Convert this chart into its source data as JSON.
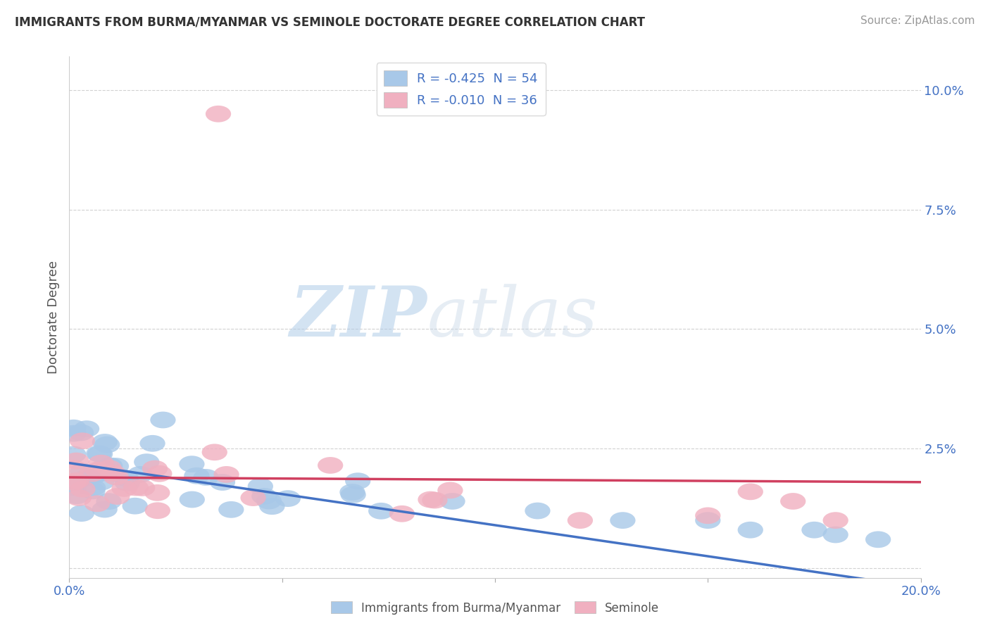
{
  "title": "IMMIGRANTS FROM BURMA/MYANMAR VS SEMINOLE DOCTORATE DEGREE CORRELATION CHART",
  "source": "Source: ZipAtlas.com",
  "ylabel": "Doctorate Degree",
  "xlim": [
    0.0,
    0.2
  ],
  "ylim": [
    -0.002,
    0.107
  ],
  "legend_r1": "R = -0.425  N = 54",
  "legend_r2": "R = -0.010  N = 36",
  "legend_label1": "Immigrants from Burma/Myanmar",
  "legend_label2": "Seminole",
  "color_blue": "#a8c8e8",
  "color_pink": "#f0b0c0",
  "color_blue_line": "#4472c4",
  "color_pink_line": "#d04060",
  "background_color": "#ffffff",
  "watermark_zip": "ZIP",
  "watermark_atlas": "atlas",
  "ytick_vals": [
    0.0,
    0.025,
    0.05,
    0.075,
    0.1
  ],
  "ytick_labels": [
    "",
    "2.5%",
    "5.0%",
    "7.5%",
    "10.0%"
  ],
  "blue_line_x0": 0.0,
  "blue_line_y0": 0.022,
  "blue_line_x1": 0.2,
  "blue_line_y1": -0.004,
  "pink_line_x0": 0.0,
  "pink_line_y0": 0.019,
  "pink_line_x1": 0.2,
  "pink_line_y1": 0.018
}
